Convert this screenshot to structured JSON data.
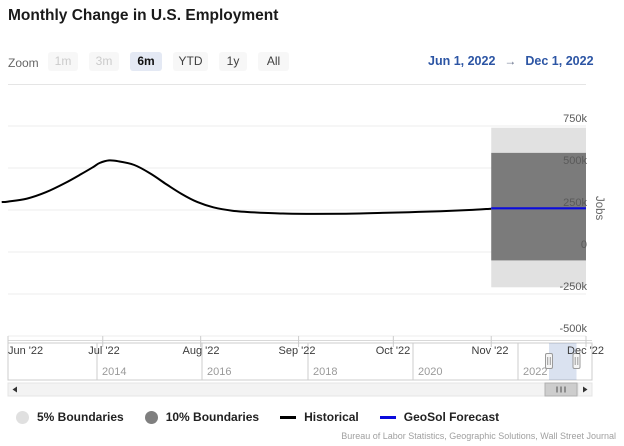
{
  "header": {
    "title": "Monthly Change in U.S. Employment"
  },
  "toolbar": {
    "zoom_label": "Zoom",
    "buttons": [
      {
        "label": "1m",
        "state": "disabled"
      },
      {
        "label": "3m",
        "state": "disabled"
      },
      {
        "label": "6m",
        "state": "selected"
      },
      {
        "label": "YTD",
        "state": "normal"
      },
      {
        "label": "1y",
        "state": "normal"
      },
      {
        "label": "All",
        "state": "normal"
      }
    ],
    "range": {
      "from": "Jun 1, 2022",
      "arrow": "→",
      "to": "Dec 1, 2022"
    }
  },
  "chart_data": {
    "type": "line",
    "title": "Monthly Change in U.S. Employment",
    "unit": "thousands of jobs",
    "ylabel": "Jobs",
    "ylim_k": [
      -500,
      750
    ],
    "grid": true,
    "x_domain_days": 183,
    "yticks": [
      {
        "v": 750,
        "label": "750k"
      },
      {
        "v": 500,
        "label": "500k"
      },
      {
        "v": 250,
        "label": "250k"
      },
      {
        "v": 0,
        "label": "0"
      },
      {
        "v": -250,
        "label": "-250k"
      },
      {
        "v": -500,
        "label": "-500k"
      }
    ],
    "xticks": [
      {
        "day": 0,
        "label": "Jun '22"
      },
      {
        "day": 30,
        "label": "Jul '22"
      },
      {
        "day": 61,
        "label": "Aug '22"
      },
      {
        "day": 92,
        "label": "Sep '22"
      },
      {
        "day": 122,
        "label": "Oct '22"
      },
      {
        "day": 153,
        "label": "Nov '22"
      },
      {
        "day": 183,
        "label": "Dec '22"
      }
    ],
    "series": {
      "historical": {
        "name": "Historical",
        "color": "#000000",
        "points_day_valuek": [
          [
            -2,
            297
          ],
          [
            0,
            300
          ],
          [
            6,
            318
          ],
          [
            12,
            356
          ],
          [
            18,
            410
          ],
          [
            23,
            462
          ],
          [
            27,
            506
          ],
          [
            29,
            530
          ],
          [
            32,
            545
          ],
          [
            35,
            540
          ],
          [
            40,
            518
          ],
          [
            45,
            468
          ],
          [
            50,
            405
          ],
          [
            55,
            345
          ],
          [
            60,
            297
          ],
          [
            65,
            266
          ],
          [
            71,
            246
          ],
          [
            78,
            236
          ],
          [
            87,
            229
          ],
          [
            97,
            227
          ],
          [
            107,
            228
          ],
          [
            117,
            232
          ],
          [
            127,
            237
          ],
          [
            137,
            243
          ],
          [
            146,
            250
          ],
          [
            153,
            258
          ]
        ]
      },
      "forecast": {
        "name": "GeoSol Forecast",
        "color": "#0b0bdc",
        "points_day_valuek": [
          [
            153,
            260
          ],
          [
            183,
            260
          ]
        ]
      },
      "band_5pct": {
        "name": "5% Boundaries",
        "color": "#e1e1e1",
        "x_days": [
          153,
          183
        ],
        "y_k": [
          -210,
          740
        ]
      },
      "band_10pct": {
        "name": "10% Boundaries",
        "color": "#7b7b7b",
        "x_days": [
          153,
          183
        ],
        "y_k": [
          -50,
          590
        ]
      }
    },
    "navigator": {
      "year_labels": [
        "2014",
        "2016",
        "2018",
        "2020",
        "2022"
      ],
      "selected_range": [
        "Jun 1, 2022",
        "Dec 1, 2022"
      ]
    }
  },
  "legend": {
    "items": [
      {
        "label": "5% Boundaries",
        "swatch": "circle",
        "color": "#e0e0e0"
      },
      {
        "label": "10% Boundaries",
        "swatch": "circle",
        "color": "#7f7f7f"
      },
      {
        "label": "Historical",
        "swatch": "line",
        "color": "#000000"
      },
      {
        "label": "GeoSol Forecast",
        "swatch": "line",
        "color": "#0b0bdc"
      }
    ]
  },
  "attribution": "Bureau of Labor Statistics, Geographic Solutions, Wall Street Journal"
}
